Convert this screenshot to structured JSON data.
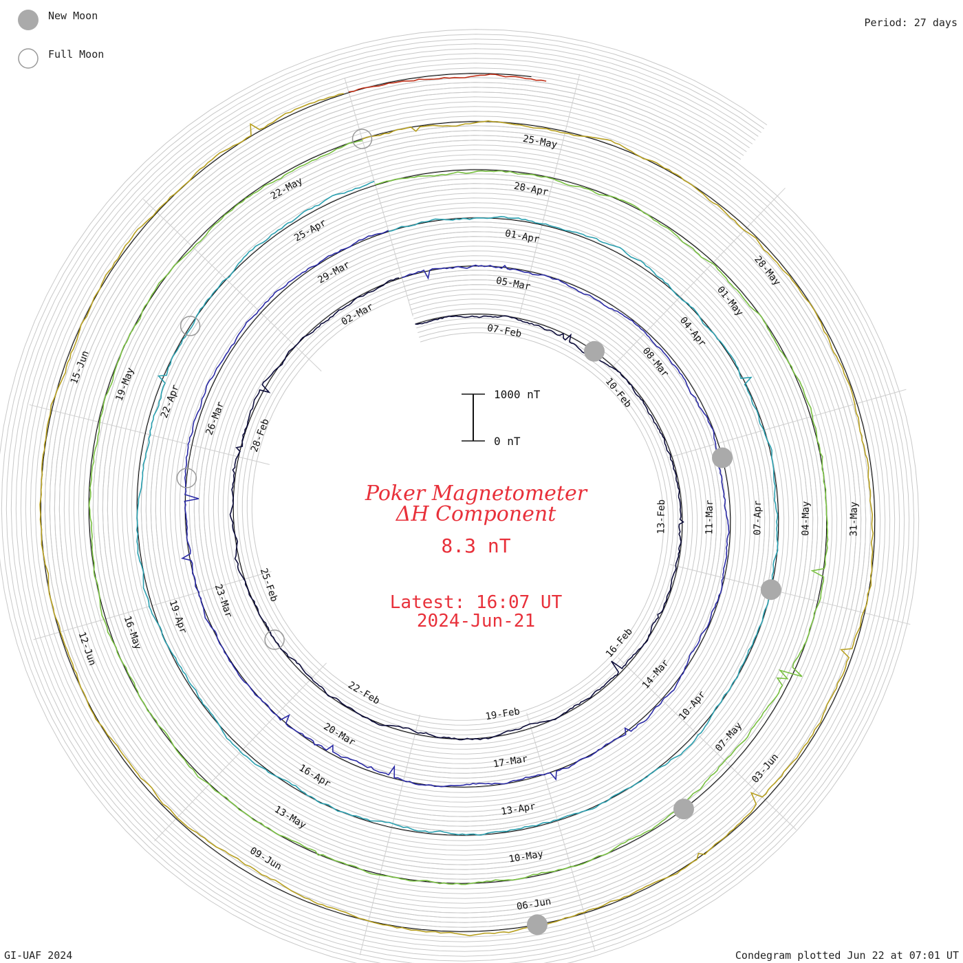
{
  "legend": {
    "new_moon": "New Moon",
    "full_moon": "Full Moon",
    "moon_fill": "#aaaaaa"
  },
  "period": "Period: 27 days",
  "footer_left": "GI-UAF 2024",
  "footer_right": "Condegram plotted Jun 22 at 07:01 UT",
  "center": {
    "title_line1": "Poker Magnetometer",
    "title_line2": "ΔH Component",
    "value": "8.3 nT",
    "latest_time": "Latest: 16:07 UT",
    "latest_date": "2024-Jun-21",
    "text_color": "#e8303a"
  },
  "scale_bar": {
    "top_label": "1000 nT",
    "bottom_label": "0 nT"
  },
  "chart_data": {
    "type": "line",
    "layout": "spiral",
    "start_date": "2024-02-05",
    "end_date": "2024-06-21",
    "period_days": 27,
    "units": "nT",
    "rotations": [
      {
        "color": "#0c0c3a",
        "labels": [
          "07-Feb",
          "10-Feb",
          "13-Feb",
          "16-Feb",
          "19-Feb",
          "22-Feb",
          "25-Feb",
          "28-Feb",
          "02-Mar"
        ]
      },
      {
        "color": "#2a2aa6",
        "labels": [
          "05-Mar",
          "08-Mar",
          "11-Mar",
          "14-Mar",
          "17-Mar",
          "20-Mar",
          "23-Mar",
          "26-Mar",
          "29-Mar"
        ]
      },
      {
        "color": "#2aa0b0",
        "labels": [
          "01-Apr",
          "04-Apr",
          "07-Apr",
          "10-Apr",
          "13-Apr",
          "16-Apr",
          "19-Apr",
          "22-Apr",
          "25-Apr"
        ]
      },
      {
        "color": "#78c040",
        "labels": [
          "28-Apr",
          "01-May",
          "04-May",
          "07-May",
          "10-May",
          "13-May",
          "16-May",
          "19-May",
          "22-May"
        ]
      },
      {
        "color": "#b8a020",
        "labels": [
          "25-May",
          "28-May",
          "31-May",
          "03-Jun",
          "06-Jun",
          "09-Jun",
          "12-Jun",
          "15-Jun"
        ]
      },
      {
        "color": "#c03018",
        "labels": []
      }
    ],
    "new_moon_dates": [
      "2024-02-09",
      "2024-03-10",
      "2024-04-08",
      "2024-05-08",
      "2024-06-06"
    ],
    "full_moon_dates": [
      "2024-02-24",
      "2024-03-25",
      "2024-04-23",
      "2024-05-23"
    ]
  }
}
